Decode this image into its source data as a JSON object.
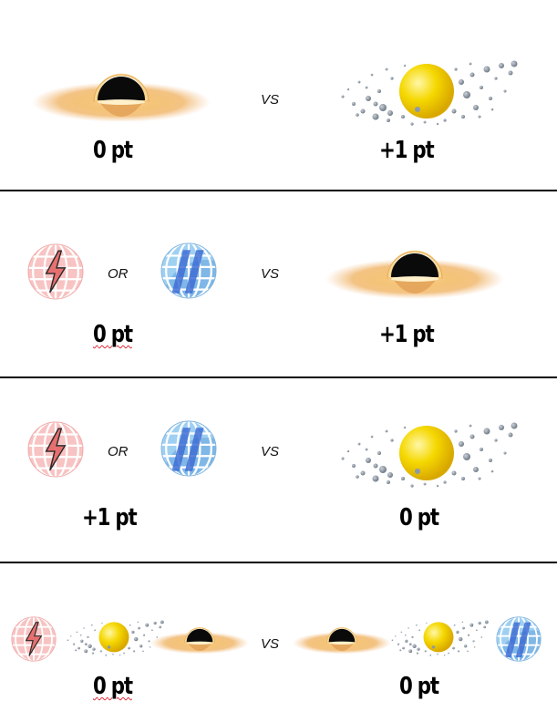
{
  "rows": [
    {
      "left_points": "0 pt",
      "vs": "VS",
      "right_points": "+1 pt"
    },
    {
      "or": "OR",
      "vs": "VS",
      "left_points": "0 pt",
      "right_points": "+1 pt"
    },
    {
      "or": "OR",
      "vs": "VS",
      "left_points": "+1 pt",
      "right_points": "0 pt"
    },
    {
      "vs": "VS",
      "left_points": "0 pt",
      "right_points": "0 pt"
    }
  ],
  "icons": {
    "black_hole": "black-hole-icon",
    "star_field": "yellow-star-asteroids-icon",
    "red_globe": "red-lightning-globe-icon",
    "blue_globe": "blue-striped-globe-icon"
  },
  "colors": {
    "accretion_disk": "#f2b35a",
    "star": "#f5d400",
    "red_globe": "#f7b8b8",
    "blue_globe": "#8cc3ec",
    "divider": "#000000"
  }
}
